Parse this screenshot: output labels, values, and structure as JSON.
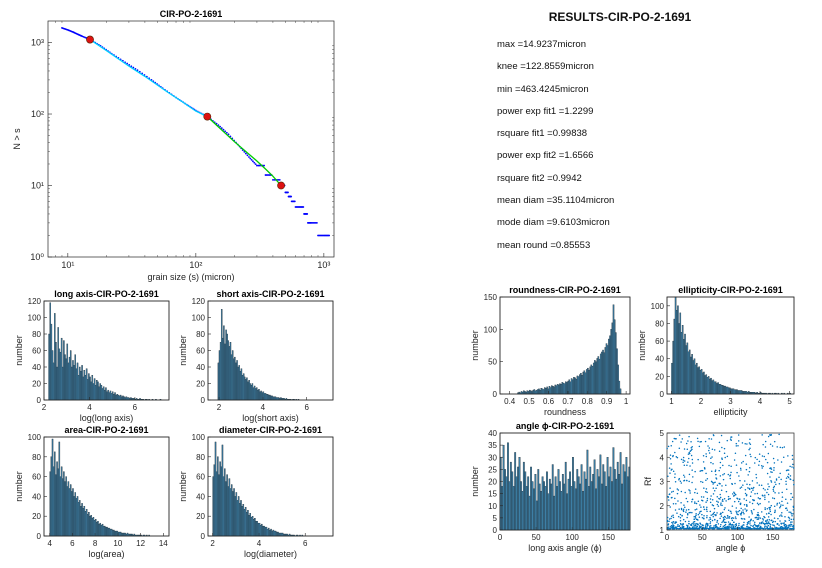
{
  "results": {
    "title": "RESULTS-CIR-PO-2-1691",
    "lines": [
      "max =14.9237micron",
      "knee =122.8559micron",
      "min =463.4245micron",
      "power exp fit1 =1.2299",
      "rsquare fit1 =0.99838",
      "power exp fit2 =1.6566",
      "rsquare fit2 =0.9942",
      "mean diam =35.1104micron",
      "mode diam =9.6103micron",
      "mean round =0.85553"
    ]
  },
  "chart_data": [
    {
      "id": "main",
      "type": "scatter",
      "title": "CIR-PO-2-1691",
      "xlabel": "grain size (s) (micron)",
      "ylabel": "N > s",
      "xscale": "log",
      "yscale": "log",
      "xlim": [
        7,
        1200
      ],
      "ylim": [
        1,
        2000
      ],
      "xticks": [
        10,
        100,
        1000
      ],
      "xtick_labels": [
        "10¹",
        "10²",
        "10³"
      ],
      "yticks": [
        1,
        10,
        100,
        1000
      ],
      "ytick_labels": [
        "10⁰",
        "10¹",
        "10²",
        "10³"
      ],
      "series": [
        {
          "role": "data",
          "color": "#0000ff",
          "x": [
            9,
            10,
            11,
            12,
            13,
            14.9,
            18,
            22,
            28,
            35,
            45,
            55,
            70,
            85,
            100,
            122.9,
            150,
            180,
            220,
            260,
            300,
            350,
            400,
            463.4,
            500,
            530,
            560,
            600,
            650,
            700,
            750,
            800,
            900,
            1000,
            1100
          ],
          "y": [
            1600,
            1500,
            1400,
            1300,
            1220,
            1100,
            900,
            700,
            530,
            410,
            300,
            230,
            170,
            135,
            112,
            92,
            70,
            52,
            35,
            25,
            19,
            14,
            12,
            10,
            8,
            7,
            6,
            5,
            5,
            4,
            3,
            3,
            2,
            2,
            2
          ]
        },
        {
          "role": "fit1",
          "color": "#00d0ff",
          "x": [
            14.9,
            20,
            30,
            40,
            60,
            80,
            100,
            122.9
          ],
          "y": [
            1100,
            770,
            468,
            336,
            203,
            145,
            110,
            92
          ]
        },
        {
          "role": "fit2",
          "color": "#00cc00",
          "x": [
            122.9,
            150,
            200,
            250,
            300,
            350,
            400,
            463.4
          ],
          "y": [
            92,
            66,
            41,
            29,
            22,
            17,
            13.5,
            10
          ]
        }
      ],
      "markers": {
        "color": "#dd1111",
        "x": [
          14.9,
          122.9,
          463.4
        ],
        "y": [
          1100,
          92,
          10
        ]
      }
    },
    {
      "id": "long_axis",
      "type": "bar",
      "title": "long axis-CIR-PO-2-1691",
      "xlabel": "log(long axis)",
      "ylabel": "number",
      "xlim": [
        2,
        7.5
      ],
      "ylim": [
        0,
        120
      ],
      "xticks": [
        2,
        4,
        6
      ],
      "yticks": [
        0,
        20,
        40,
        60,
        80,
        100,
        120
      ],
      "bin_start": 2.2,
      "bin_width": 0.05,
      "values": [
        80,
        118,
        92,
        60,
        45,
        105,
        70,
        40,
        88,
        62,
        58,
        75,
        40,
        72,
        55,
        50,
        68,
        45,
        52,
        60,
        40,
        48,
        42,
        55,
        38,
        45,
        30,
        40,
        35,
        42,
        28,
        36,
        30,
        38,
        25,
        32,
        28,
        22,
        30,
        20,
        26,
        18,
        24,
        22,
        16,
        20,
        18,
        14,
        16,
        12,
        15,
        10,
        12,
        9,
        11,
        8,
        10,
        7,
        9,
        6,
        7,
        6,
        5,
        6,
        4,
        5,
        4,
        3,
        4,
        3,
        3,
        2,
        3,
        2,
        2,
        2,
        1,
        2,
        1,
        1,
        2,
        1,
        1,
        1,
        0,
        1,
        1,
        0,
        1,
        0,
        0,
        1,
        0,
        0,
        1,
        0,
        0,
        0,
        1
      ]
    },
    {
      "id": "short_axis",
      "type": "bar",
      "title": "short axis-CIR-PO-2-1691",
      "xlabel": "log(short axis)",
      "ylabel": "number",
      "xlim": [
        1.5,
        7.2
      ],
      "ylim": [
        0,
        120
      ],
      "xticks": [
        2,
        4,
        6
      ],
      "yticks": [
        0,
        20,
        40,
        60,
        80,
        100,
        120
      ],
      "bin_start": 1.95,
      "bin_width": 0.05,
      "values": [
        45,
        60,
        70,
        110,
        75,
        90,
        68,
        85,
        80,
        72,
        65,
        70,
        55,
        60,
        50,
        52,
        45,
        48,
        40,
        42,
        35,
        38,
        30,
        32,
        28,
        25,
        27,
        22,
        24,
        20,
        18,
        20,
        15,
        17,
        14,
        15,
        12,
        13,
        10,
        11,
        9,
        10,
        8,
        8,
        7,
        7,
        6,
        6,
        5,
        5,
        4,
        4,
        4,
        3,
        3,
        3,
        2,
        3,
        2,
        2,
        2,
        1,
        2,
        1,
        1,
        1,
        1,
        0,
        1,
        1,
        0,
        1,
        0,
        1
      ]
    },
    {
      "id": "area",
      "type": "bar",
      "title": "area-CIR-PO-2-1691",
      "xlabel": "log(area)",
      "ylabel": "number",
      "xlim": [
        3.5,
        14.5
      ],
      "ylim": [
        0,
        100
      ],
      "xticks": [
        4,
        6,
        8,
        10,
        12,
        14
      ],
      "yticks": [
        0,
        20,
        40,
        60,
        80,
        100
      ],
      "bin_start": 4.0,
      "bin_width": 0.1,
      "values": [
        65,
        80,
        98,
        70,
        85,
        62,
        75,
        68,
        95,
        60,
        70,
        58,
        65,
        55,
        60,
        50,
        55,
        48,
        52,
        45,
        48,
        40,
        44,
        38,
        40,
        34,
        36,
        30,
        33,
        28,
        30,
        25,
        27,
        22,
        24,
        20,
        21,
        18,
        19,
        16,
        17,
        14,
        15,
        12,
        13,
        11,
        12,
        10,
        10,
        9,
        9,
        8,
        8,
        7,
        7,
        6,
        6,
        5,
        5,
        5,
        4,
        4,
        4,
        3,
        3,
        3,
        3,
        2,
        3,
        2,
        2,
        2,
        2,
        1,
        2,
        1,
        1,
        1,
        1,
        1,
        1,
        0,
        1,
        1,
        0,
        1,
        0,
        1
      ]
    },
    {
      "id": "diameter",
      "type": "bar",
      "title": "diameter-CIR-PO-2-1691",
      "xlabel": "log(diameter)",
      "ylabel": "number",
      "xlim": [
        1.8,
        7.2
      ],
      "ylim": [
        0,
        100
      ],
      "xticks": [
        2,
        4,
        6
      ],
      "yticks": [
        0,
        20,
        40,
        60,
        80,
        100
      ],
      "bin_start": 2.0,
      "bin_width": 0.05,
      "values": [
        60,
        72,
        95,
        65,
        80,
        62,
        75,
        70,
        92,
        60,
        68,
        55,
        62,
        50,
        58,
        48,
        52,
        45,
        48,
        40,
        44,
        36,
        40,
        33,
        36,
        30,
        32,
        27,
        29,
        24,
        26,
        21,
        23,
        19,
        20,
        17,
        18,
        15,
        15,
        13,
        13,
        11,
        12,
        10,
        10,
        9,
        9,
        7,
        8,
        6,
        7,
        5,
        6,
        5,
        5,
        4,
        4,
        3,
        3,
        3,
        3,
        2,
        2,
        2,
        2,
        1,
        2,
        1,
        1,
        1,
        1,
        0,
        1,
        1,
        0,
        1,
        0,
        1
      ]
    },
    {
      "id": "roundness",
      "type": "bar",
      "title": "roundness-CIR-PO-2-1691",
      "xlabel": "roundness",
      "ylabel": "number",
      "xlim": [
        0.35,
        1.02
      ],
      "ylim": [
        0,
        150
      ],
      "xticks": [
        0.4,
        0.5,
        0.6,
        0.7,
        0.8,
        0.9,
        1
      ],
      "xtick_labels": [
        "0.4",
        "0.5",
        "0.6",
        "0.7",
        "0.8",
        "0.9",
        "1"
      ],
      "yticks": [
        0,
        50,
        100,
        150
      ],
      "bin_start": 0.44,
      "bin_width": 0.006,
      "values": [
        2,
        3,
        2,
        4,
        3,
        5,
        4,
        3,
        5,
        4,
        6,
        5,
        4,
        6,
        7,
        5,
        6,
        7,
        8,
        6,
        9,
        8,
        7,
        10,
        9,
        11,
        8,
        12,
        10,
        13,
        12,
        11,
        14,
        13,
        15,
        14,
        16,
        15,
        18,
        17,
        16,
        19,
        18,
        20,
        22,
        19,
        24,
        22,
        26,
        25,
        23,
        28,
        27,
        30,
        32,
        29,
        34,
        36,
        33,
        38,
        40,
        37,
        42,
        45,
        43,
        48,
        52,
        50,
        55,
        58,
        54,
        62,
        65,
        68,
        64,
        72,
        78,
        75,
        85,
        90,
        100,
        110,
        138,
        115,
        95,
        70,
        45,
        20,
        8
      ]
    },
    {
      "id": "ellipticity",
      "type": "bar",
      "title": "ellipticity-CIR-PO-2-1691",
      "xlabel": "ellipticity",
      "ylabel": "number",
      "xlim": [
        0.85,
        5.15
      ],
      "ylim": [
        0,
        110
      ],
      "xticks": [
        1,
        2,
        3,
        4,
        5
      ],
      "yticks": [
        0,
        20,
        40,
        60,
        80,
        100
      ],
      "bin_start": 1.0,
      "bin_width": 0.04,
      "values": [
        35,
        60,
        85,
        110,
        95,
        100,
        80,
        92,
        70,
        78,
        62,
        68,
        55,
        58,
        48,
        50,
        42,
        45,
        38,
        40,
        33,
        35,
        30,
        31,
        27,
        28,
        24,
        25,
        21,
        22,
        19,
        20,
        17,
        18,
        15,
        16,
        14,
        14,
        12,
        13,
        11,
        11,
        10,
        10,
        9,
        9,
        8,
        8,
        7,
        7,
        6,
        6,
        6,
        5,
        5,
        5,
        4,
        4,
        4,
        4,
        3,
        3,
        3,
        3,
        2,
        3,
        2,
        2,
        2,
        2,
        2,
        1,
        2,
        1,
        1,
        2,
        1,
        1,
        1,
        1,
        1,
        0,
        1,
        1,
        0,
        1,
        0,
        1,
        1,
        0,
        1,
        0,
        0,
        1,
        0,
        1,
        0,
        0,
        1,
        0,
        1
      ]
    },
    {
      "id": "angle",
      "type": "bar",
      "title": "angle ϕ-CIR-PO-2-1691",
      "xlabel": "long axis angle (ϕ)",
      "ylabel": "number",
      "xlim": [
        0,
        180
      ],
      "ylim": [
        0,
        40
      ],
      "xticks": [
        0,
        50,
        100,
        150
      ],
      "yticks": [
        0,
        5,
        10,
        15,
        20,
        25,
        30,
        35,
        40
      ],
      "bin_start": 0,
      "bin_width": 2,
      "values": [
        30,
        18,
        35,
        25,
        22,
        36,
        20,
        28,
        24,
        18,
        32,
        22,
        26,
        30,
        20,
        16,
        28,
        24,
        18,
        22,
        14,
        26,
        20,
        17,
        23,
        12,
        25,
        19,
        16,
        22,
        20,
        18,
        24,
        15,
        21,
        19,
        27,
        14,
        22,
        18,
        25,
        20,
        16,
        23,
        19,
        28,
        15,
        21,
        24,
        18,
        30,
        20,
        17,
        25,
        22,
        19,
        27,
        16,
        24,
        21,
        33,
        18,
        26,
        20,
        23,
        29,
        17,
        25,
        22,
        31,
        19,
        27,
        24,
        18,
        30,
        22,
        26,
        20,
        34,
        25,
        21,
        28,
        23,
        32,
        19,
        27,
        24,
        30,
        22,
        26
      ]
    },
    {
      "id": "rf",
      "type": "scatter",
      "title": "",
      "xlabel": "angle ϕ",
      "ylabel": "Rf",
      "xlim": [
        0,
        180
      ],
      "ylim": [
        1,
        5
      ],
      "xticks": [
        0,
        50,
        100,
        150
      ],
      "yticks": [
        1,
        2,
        3,
        4,
        5
      ],
      "color": "#0072bd",
      "n_points": 1250
    }
  ]
}
